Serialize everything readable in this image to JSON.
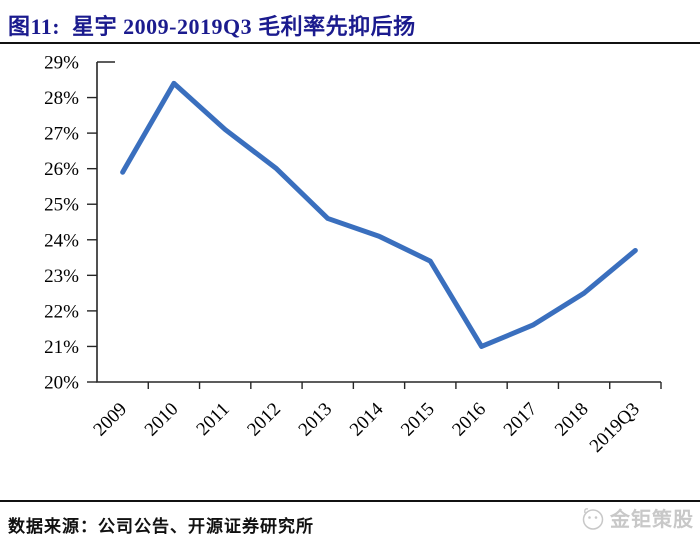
{
  "figure": {
    "number_label": "图11:",
    "title": "星宇 2009-2019Q3 毛利率先抑后扬",
    "title_color": "#1B1B8E"
  },
  "chart_data": {
    "type": "line",
    "title": "星宇 2009-2019Q3 毛利率先抑后扬",
    "categories": [
      "2009",
      "2010",
      "2011",
      "2012",
      "2013",
      "2014",
      "2015",
      "2016",
      "2017",
      "2018",
      "2019Q3"
    ],
    "values": [
      25.9,
      28.4,
      27.1,
      26.0,
      24.6,
      24.1,
      23.4,
      21.0,
      21.6,
      22.5,
      23.7
    ],
    "xlabel": "",
    "ylabel": "",
    "ylim": [
      20,
      29
    ],
    "ytick_step": 1,
    "ytick_suffix": "%",
    "grid": false,
    "legend": false,
    "line_color": "#3A6FBE",
    "axis_color": "#262626"
  },
  "footer": {
    "source_text": "数据来源：公司公告、开源证券研究所",
    "watermark_text": "金钜策股",
    "watermark_color": "#C8C8C8"
  }
}
